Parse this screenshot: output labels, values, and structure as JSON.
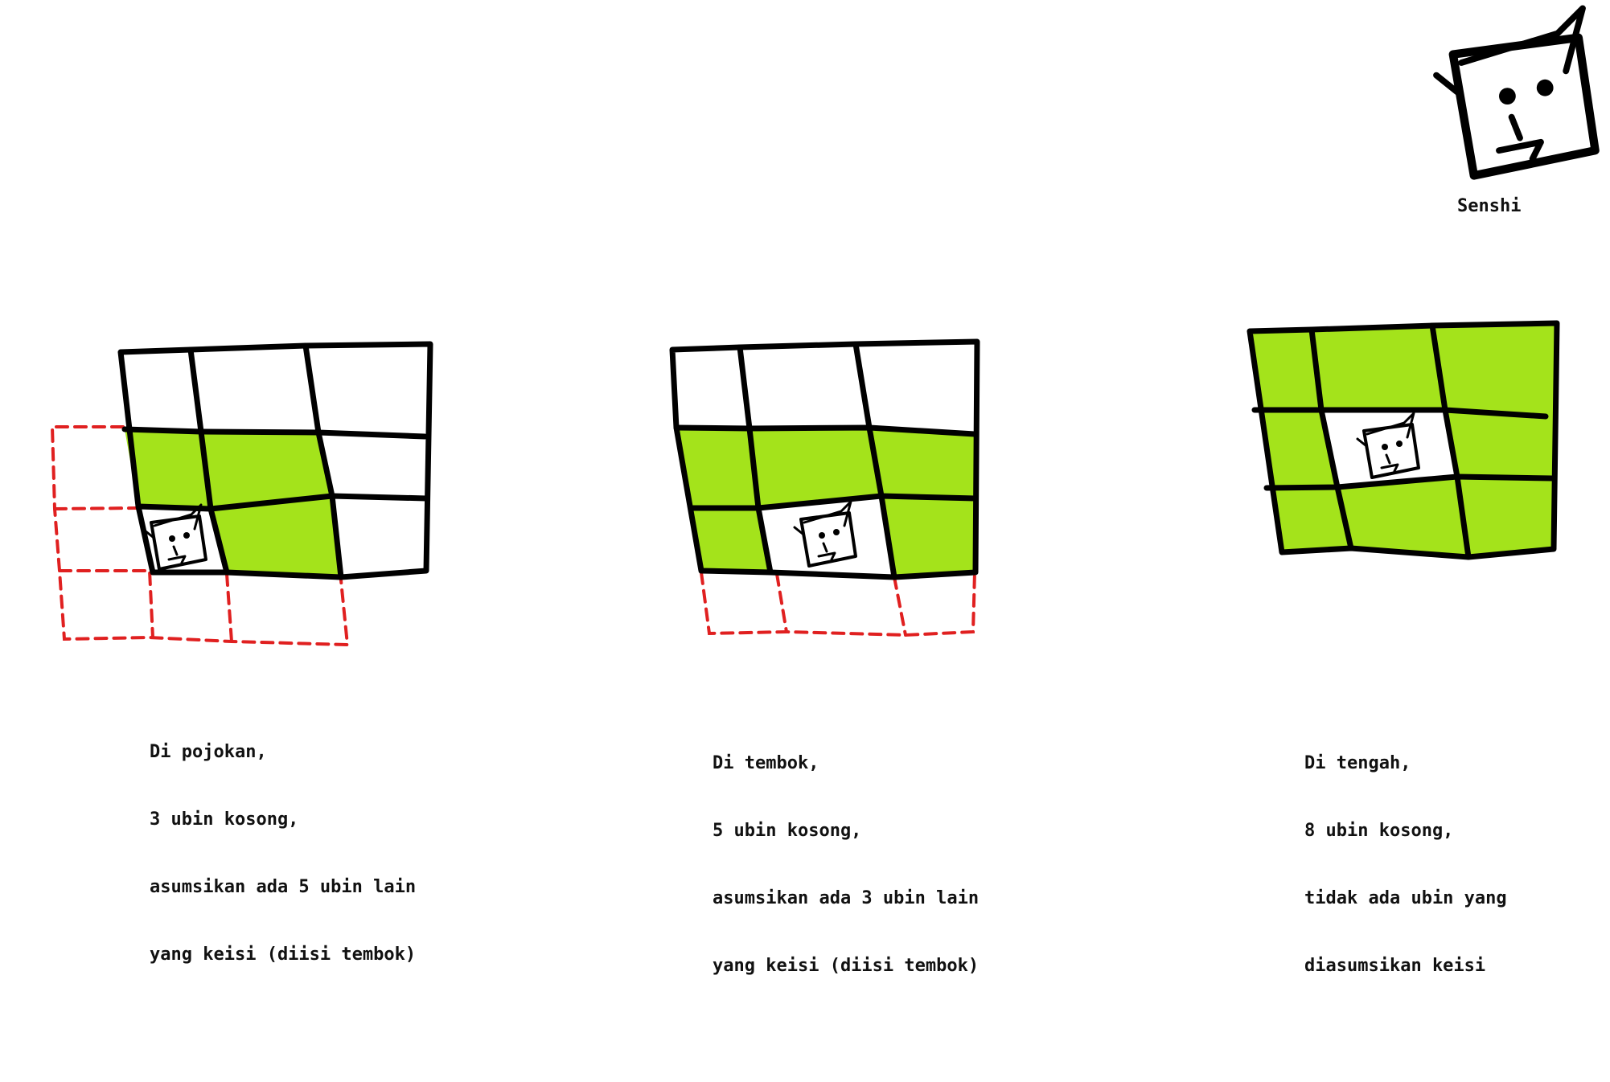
{
  "colors": {
    "occupied_fill": "#a4e31b",
    "empty_fill": "#ffffff",
    "assumed_wall_outline": "#e02020",
    "grid_stroke": "#000000"
  },
  "legend": {
    "icon": "senshi-face-icon",
    "label": "Senshi"
  },
  "panels": [
    {
      "id": "corner",
      "caption_lines": [
        "Di pojokan,",
        "3 ubin kosong,",
        "asumsikan ada 5 ubin lain",
        "yang keisi (diisi tembok)"
      ],
      "grid": [
        [
          "empty",
          "empty",
          "empty"
        ],
        [
          "filled",
          "filled",
          "empty"
        ],
        [
          "senshi",
          "filled",
          "empty"
        ]
      ],
      "assumed_wall_tiles": 5
    },
    {
      "id": "wall",
      "caption_lines": [
        "Di tembok,",
        "5 ubin kosong,",
        "asumsikan ada 3 ubin lain",
        "yang keisi (diisi tembok)"
      ],
      "grid": [
        [
          "empty",
          "empty",
          "empty"
        ],
        [
          "filled",
          "filled",
          "filled"
        ],
        [
          "filled",
          "senshi",
          "filled"
        ]
      ],
      "assumed_wall_tiles": 3
    },
    {
      "id": "middle",
      "caption_lines": [
        "Di tengah,",
        "8 ubin kosong,",
        "tidak ada ubin yang",
        "diasumsikan keisi"
      ],
      "grid": [
        [
          "filled",
          "filled",
          "filled"
        ],
        [
          "filled",
          "senshi",
          "filled"
        ],
        [
          "filled",
          "filled",
          "filled"
        ]
      ],
      "assumed_wall_tiles": 0
    }
  ]
}
